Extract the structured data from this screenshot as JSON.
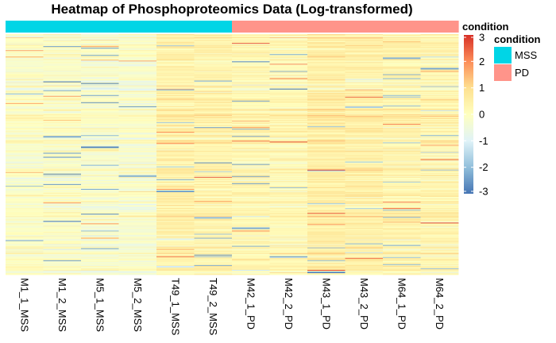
{
  "chart_data": {
    "type": "heatmap",
    "title": "Heatmap of Phosphoproteomics Data (Log-transformed)",
    "columns": [
      "M1_1_MSS",
      "M1_2_MSS",
      "M5_1_MSS",
      "M5_2_MSS",
      "T49_1_MSS",
      "T49_2_MSS",
      "M42_1_PD",
      "M42_2_PD",
      "M43_1_PD",
      "M43_2_PD",
      "M64_1_PD",
      "M64_2_PD"
    ],
    "annotation": {
      "name": "condition",
      "values": [
        "MSS",
        "MSS",
        "MSS",
        "MSS",
        "MSS",
        "MSS",
        "PD",
        "PD",
        "PD",
        "PD",
        "PD",
        "PD"
      ],
      "colors": {
        "MSS": "#00D5E6",
        "PD": "#FF948A"
      }
    },
    "color_scale": {
      "title": "condition",
      "min": -3,
      "max": 3,
      "ticks": [
        3,
        2,
        1,
        0,
        -1,
        -2,
        -3
      ],
      "tick_labels": [
        "3",
        "2",
        "1",
        "0",
        "-1",
        "-2",
        "-3"
      ],
      "stops": [
        {
          "value": -3,
          "color": "#4575B4"
        },
        {
          "value": -2,
          "color": "#91BFDB"
        },
        {
          "value": -1,
          "color": "#E0F3F8"
        },
        {
          "value": 0,
          "color": "#FFFFBF"
        },
        {
          "value": 1,
          "color": "#FEE090"
        },
        {
          "value": 2,
          "color": "#FC8D59"
        },
        {
          "value": 3,
          "color": "#D73027"
        }
      ]
    },
    "column_means": [
      -0.1,
      -0.1,
      -0.2,
      -0.2,
      0.45,
      0.35,
      0.25,
      0.2,
      0.55,
      0.45,
      0.35,
      0.3
    ],
    "legend": {
      "title": "condition",
      "items": [
        {
          "label": "MSS",
          "color": "#00D5E6"
        },
        {
          "label": "PD",
          "color": "#FF948A"
        }
      ]
    },
    "grid": false,
    "legend_placement": "right"
  }
}
